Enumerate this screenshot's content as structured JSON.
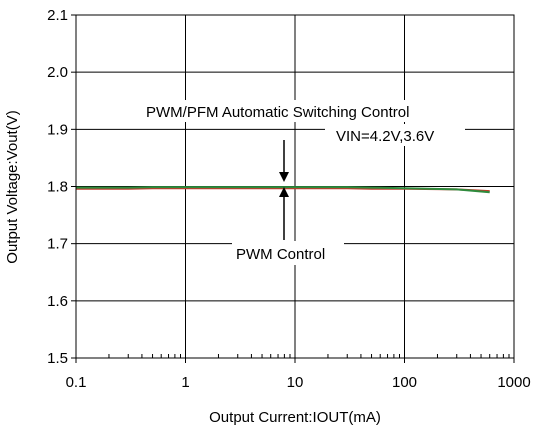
{
  "chart_data": {
    "type": "line",
    "title": "",
    "xlabel": "Output Current:IOUT(mA)",
    "ylabel": "Output Voltage:Vout(V)",
    "x_scale": "log",
    "xlim": [
      0.1,
      1000
    ],
    "ylim": [
      1.5,
      2.1
    ],
    "x_ticks": [
      0.1,
      1,
      10,
      100,
      1000
    ],
    "x_tick_labels": [
      "0.1",
      "1",
      "10",
      "100",
      "1000"
    ],
    "y_ticks": [
      1.5,
      1.6,
      1.7,
      1.8,
      1.9,
      2.0,
      2.1
    ],
    "y_tick_labels": [
      "1.5",
      "1.6",
      "1.7",
      "1.8",
      "1.9",
      "2.0",
      "2.1"
    ],
    "grid": true,
    "series": [
      {
        "color": "#c0392b",
        "x": [
          0.1,
          0.3,
          0.5,
          1,
          3,
          10,
          30,
          50,
          100,
          300,
          600
        ],
        "y": [
          1.796,
          1.796,
          1.797,
          1.797,
          1.797,
          1.797,
          1.797,
          1.796,
          1.796,
          1.795,
          1.792
        ]
      },
      {
        "color": "#2e8b3d",
        "x": [
          0.1,
          0.3,
          0.5,
          1,
          3,
          10,
          30,
          50,
          100,
          300,
          600
        ],
        "y": [
          1.798,
          1.798,
          1.799,
          1.799,
          1.799,
          1.799,
          1.799,
          1.798,
          1.797,
          1.795,
          1.79
        ]
      }
    ],
    "annotations": {
      "top_label": "PWM/PFM  Automatic Switching Control",
      "vin_label": "VIN=4.2V,3.6V",
      "bottom_label": "PWM Control"
    }
  }
}
